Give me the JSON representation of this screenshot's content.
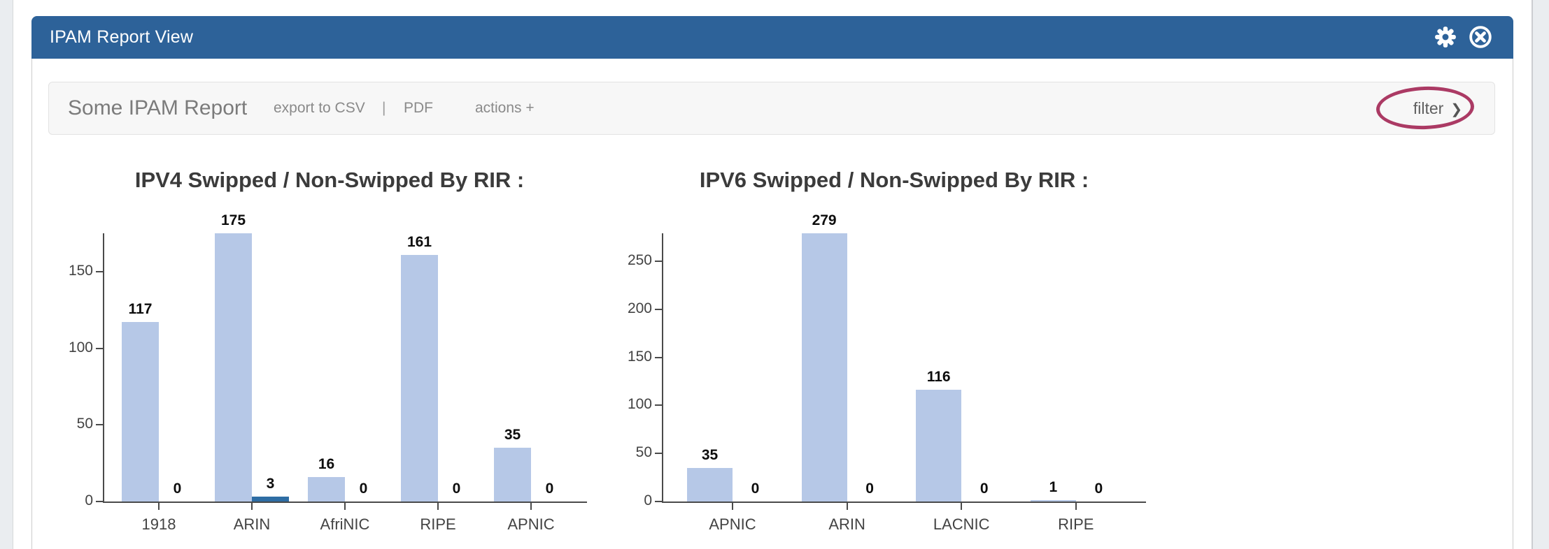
{
  "window": {
    "title": "IPAM Report View"
  },
  "header": {
    "icons": [
      {
        "name": "gear-icon"
      },
      {
        "name": "close-icon"
      }
    ]
  },
  "toolbar": {
    "report_title": "Some IPAM Report",
    "export_csv_label": "export to CSV",
    "separator": "|",
    "pdf_label": "PDF",
    "actions_label": "actions +",
    "filter_label": "filter",
    "filter_chevron": "❯"
  },
  "colors": {
    "header_bg": "#2d6299",
    "bar_light": "#b6c8e7",
    "bar_dark": "#2e6da4",
    "annotation": "#ab3a64"
  },
  "chart_data": [
    {
      "type": "bar",
      "title": "IPV4 Swipped / Non-Swipped By RIR :",
      "categories": [
        "1918",
        "ARIN",
        "AfriNIC",
        "RIPE",
        "APNIC"
      ],
      "series": [
        {
          "name": "Swipped",
          "values": [
            117,
            175,
            16,
            161,
            35
          ]
        },
        {
          "name": "Non-Swipped",
          "values": [
            0,
            3,
            0,
            0,
            0
          ]
        }
      ],
      "colors": [
        "#b6c8e7",
        "#2e6da4"
      ],
      "yticks": [
        0,
        50,
        100,
        150
      ],
      "ylim": [
        0,
        175
      ],
      "grid": false,
      "legend": "none",
      "value_labels": true
    },
    {
      "type": "bar",
      "title": "IPV6 Swipped / Non-Swipped By RIR :",
      "categories": [
        "APNIC",
        "ARIN",
        "LACNIC",
        "RIPE"
      ],
      "series": [
        {
          "name": "Swipped",
          "values": [
            35,
            279,
            116,
            1
          ]
        },
        {
          "name": "Non-Swipped",
          "values": [
            0,
            0,
            0,
            0
          ]
        }
      ],
      "colors": [
        "#b6c8e7",
        "#2e6da4"
      ],
      "yticks": [
        0,
        50,
        100,
        150,
        200,
        250
      ],
      "ylim": [
        0,
        279
      ],
      "grid": false,
      "legend": "none",
      "value_labels": true
    }
  ]
}
